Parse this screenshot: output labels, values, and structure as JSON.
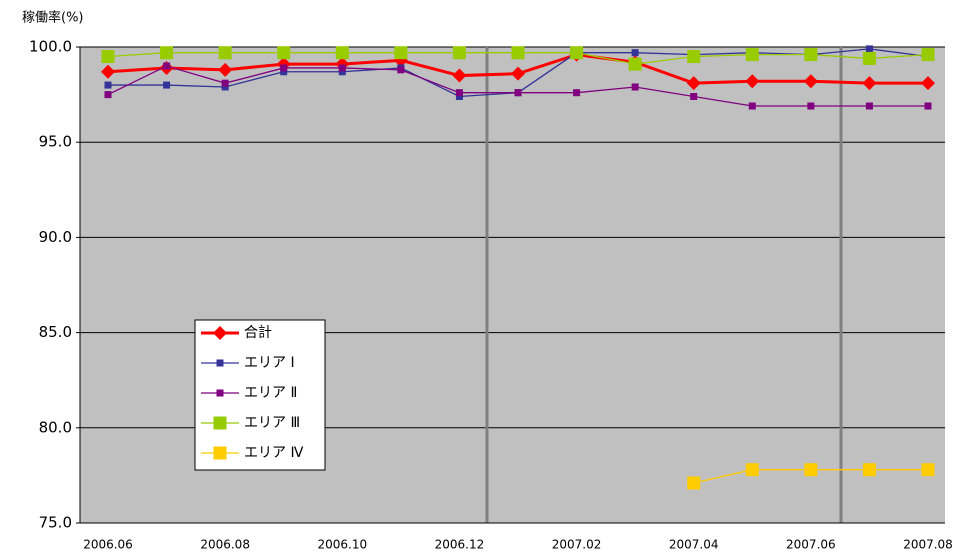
{
  "chart_data": {
    "type": "line",
    "y_label": "稼働率(%)",
    "categories": [
      "2006.06",
      null,
      "2006.08",
      null,
      "2006.10",
      null,
      "2006.12",
      null,
      "2007.02",
      null,
      "2007.04",
      null,
      "2007.06",
      null,
      "2007.08"
    ],
    "ylim": [
      75,
      100
    ],
    "yticks": [
      {
        "value": 75,
        "label": "75.0"
      },
      {
        "value": 80,
        "label": "80.0"
      },
      {
        "value": 85,
        "label": "85.0"
      },
      {
        "value": 90,
        "label": "90.0"
      },
      {
        "value": 95,
        "label": "95.0"
      },
      {
        "value": 100,
        "label": "100.0"
      }
    ],
    "grid": true,
    "legend": "left",
    "series": [
      {
        "name": "合計",
        "color": "#ff0000",
        "marker": "diamond",
        "values": [
          98.7,
          98.9,
          98.8,
          99.1,
          99.1,
          99.3,
          98.5,
          98.6,
          99.6,
          99.2,
          98.1,
          98.2,
          98.2,
          98.1,
          98.1
        ]
      },
      {
        "name": "エリア Ⅰ",
        "color": "#333399",
        "marker": "square-small",
        "values": [
          98.0,
          98.0,
          97.9,
          98.7,
          98.7,
          98.9,
          97.4,
          97.6,
          99.7,
          99.7,
          99.6,
          99.7,
          99.6,
          99.9,
          99.5
        ]
      },
      {
        "name": "エリア Ⅱ",
        "color": "#800080",
        "marker": "square-small",
        "values": [
          97.5,
          99.0,
          98.1,
          98.9,
          98.9,
          98.8,
          97.6,
          97.6,
          97.6,
          97.9,
          97.4,
          96.9,
          96.9,
          96.9,
          96.9
        ]
      },
      {
        "name": "エリア Ⅲ",
        "color": "#99cc00",
        "marker": "square-large",
        "values": [
          99.5,
          99.7,
          99.7,
          99.7,
          99.7,
          99.7,
          99.7,
          99.7,
          99.7,
          99.1,
          99.5,
          99.6,
          99.6,
          99.4,
          99.6
        ]
      },
      {
        "name": "エリア Ⅳ",
        "color": "#ffcc00",
        "marker": "square-large",
        "values": [
          null,
          null,
          null,
          null,
          null,
          null,
          null,
          null,
          null,
          null,
          77.1,
          77.8,
          77.8,
          77.8,
          77.8
        ]
      }
    ]
  }
}
